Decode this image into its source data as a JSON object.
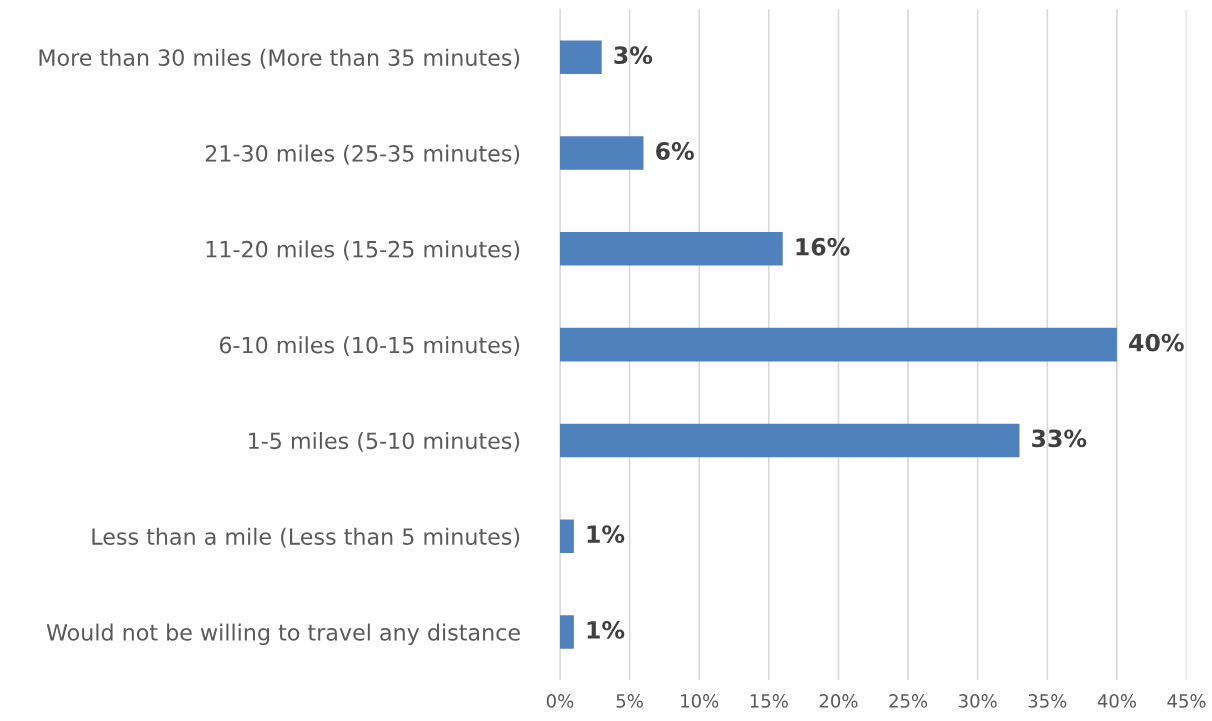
{
  "chart_data": {
    "type": "bar",
    "orientation": "horizontal",
    "categories": [
      "More than 30 miles (More than 35 minutes)",
      "21-30 miles (25-35 minutes)",
      "11-20 miles (15-25 minutes)",
      "6-10 miles (10-15 minutes)",
      "1-5 miles (5-10 minutes)",
      "Less than a mile (Less than 5 minutes)",
      "Would not be willing to travel any distance"
    ],
    "values": [
      3,
      6,
      16,
      40,
      33,
      1,
      1
    ],
    "color": "#4f81bd",
    "value_labels": [
      "3%",
      "6%",
      "16%",
      "40%",
      "33%",
      "1%",
      "1%"
    ],
    "xlim": [
      0,
      45
    ],
    "xticks": [
      {
        "value": 0,
        "label": "0%"
      },
      {
        "value": 5,
        "label": "5%"
      },
      {
        "value": 10,
        "label": "10%"
      },
      {
        "value": 15,
        "label": "15%"
      },
      {
        "value": 20,
        "label": "20%"
      },
      {
        "value": 25,
        "label": "25%"
      },
      {
        "value": 30,
        "label": "30%"
      },
      {
        "value": 35,
        "label": "35%"
      },
      {
        "value": 40,
        "label": "40%"
      },
      {
        "value": 45,
        "label": "45%"
      }
    ],
    "grid": "x",
    "legend": false
  }
}
